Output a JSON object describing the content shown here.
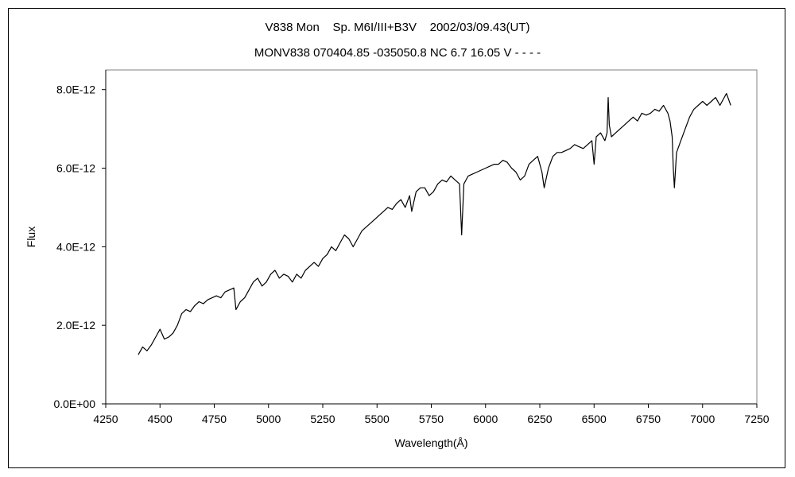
{
  "chart_data": {
    "type": "line",
    "title": "V838 Mon    Sp. M6I/III+B3V    2002/03/09.43(UT)",
    "subtitle": "MONV838 070404.85 -035050.8 NC 6.7 16.05 V - - - -",
    "xlabel": "Wavelength(Å)",
    "ylabel": "Flux",
    "xlim": [
      4250,
      7250
    ],
    "ylim": [
      0,
      8.5e-12
    ],
    "x_ticks": [
      4250,
      4500,
      4750,
      5000,
      5250,
      5500,
      5750,
      6000,
      6250,
      6500,
      6750,
      7000,
      7250
    ],
    "x_tick_labels": [
      "4250",
      "4500",
      "4750",
      "5000",
      "5250",
      "5500",
      "5750",
      "6000",
      "6250",
      "6500",
      "6750",
      "7000",
      "7250"
    ],
    "y_ticks": [
      0,
      2e-12,
      4e-12,
      6e-12,
      8e-12
    ],
    "y_tick_labels": [
      "0.0E+00",
      "2.0E-12",
      "4.0E-12",
      "6.0E-12",
      "8.0E-12"
    ],
    "grid": false,
    "legend": "none",
    "line_color": "#000000",
    "series": [
      {
        "x": [
          4400,
          4420,
          4440,
          4460,
          4480,
          4500,
          4520,
          4540,
          4560,
          4580,
          4600,
          4620,
          4640,
          4660,
          4680,
          4700,
          4720,
          4740,
          4760,
          4780,
          4800,
          4820,
          4840,
          4850,
          4870,
          4890,
          4910,
          4930,
          4950,
          4970,
          4990,
          5010,
          5030,
          5050,
          5070,
          5090,
          5110,
          5130,
          5150,
          5170,
          5190,
          5210,
          5230,
          5250,
          5270,
          5290,
          5310,
          5330,
          5350,
          5370,
          5390,
          5410,
          5430,
          5450,
          5470,
          5490,
          5510,
          5530,
          5550,
          5570,
          5590,
          5610,
          5630,
          5650,
          5660,
          5680,
          5700,
          5720,
          5740,
          5760,
          5780,
          5800,
          5820,
          5840,
          5860,
          5880,
          5890,
          5900,
          5920,
          5940,
          5960,
          5980,
          6000,
          6020,
          6040,
          6060,
          6080,
          6100,
          6120,
          6140,
          6160,
          6180,
          6200,
          6220,
          6240,
          6260,
          6270,
          6290,
          6310,
          6330,
          6350,
          6370,
          6390,
          6410,
          6430,
          6450,
          6470,
          6490,
          6500,
          6510,
          6530,
          6550,
          6560,
          6565,
          6570,
          6580,
          6600,
          6620,
          6640,
          6660,
          6680,
          6700,
          6720,
          6740,
          6760,
          6780,
          6800,
          6820,
          6840,
          6850,
          6860,
          6865,
          6870,
          6880,
          6900,
          6920,
          6940,
          6960,
          6980,
          7000,
          7020,
          7040,
          7060,
          7080,
          7100,
          7110,
          7120,
          7130
        ],
        "y": [
          1.25e-12,
          1.45e-12,
          1.35e-12,
          1.5e-12,
          1.7e-12,
          1.9e-12,
          1.65e-12,
          1.7e-12,
          1.8e-12,
          2e-12,
          2.3e-12,
          2.4e-12,
          2.35e-12,
          2.5e-12,
          2.6e-12,
          2.55e-12,
          2.65e-12,
          2.7e-12,
          2.75e-12,
          2.7e-12,
          2.85e-12,
          2.9e-12,
          2.95e-12,
          2.4e-12,
          2.6e-12,
          2.7e-12,
          2.9e-12,
          3.1e-12,
          3.2e-12,
          3e-12,
          3.1e-12,
          3.3e-12,
          3.4e-12,
          3.2e-12,
          3.3e-12,
          3.25e-12,
          3.1e-12,
          3.3e-12,
          3.2e-12,
          3.4e-12,
          3.5e-12,
          3.6e-12,
          3.5e-12,
          3.7e-12,
          3.8e-12,
          4e-12,
          3.9e-12,
          4.1e-12,
          4.3e-12,
          4.2e-12,
          4e-12,
          4.2e-12,
          4.4e-12,
          4.5e-12,
          4.6e-12,
          4.7e-12,
          4.8e-12,
          4.9e-12,
          5e-12,
          4.95e-12,
          5.1e-12,
          5.2e-12,
          5e-12,
          5.3e-12,
          4.9e-12,
          5.4e-12,
          5.5e-12,
          5.5e-12,
          5.3e-12,
          5.4e-12,
          5.6e-12,
          5.7e-12,
          5.65e-12,
          5.8e-12,
          5.7e-12,
          5.6e-12,
          4.3e-12,
          5.6e-12,
          5.8e-12,
          5.85e-12,
          5.9e-12,
          5.95e-12,
          6e-12,
          6.05e-12,
          6.1e-12,
          6.1e-12,
          6.2e-12,
          6.15e-12,
          6e-12,
          5.9e-12,
          5.7e-12,
          5.8e-12,
          6.1e-12,
          6.2e-12,
          6.3e-12,
          5.9e-12,
          5.5e-12,
          6e-12,
          6.3e-12,
          6.4e-12,
          6.4e-12,
          6.45e-12,
          6.5e-12,
          6.6e-12,
          6.55e-12,
          6.5e-12,
          6.6e-12,
          6.7e-12,
          6.1e-12,
          6.8e-12,
          6.9e-12,
          6.7e-12,
          6.9e-12,
          7.8e-12,
          7.1e-12,
          6.8e-12,
          6.9e-12,
          7e-12,
          7.1e-12,
          7.2e-12,
          7.3e-12,
          7.2e-12,
          7.4e-12,
          7.35e-12,
          7.4e-12,
          7.5e-12,
          7.45e-12,
          7.6e-12,
          7.4e-12,
          7.2e-12,
          6.8e-12,
          6e-12,
          5.5e-12,
          6.4e-12,
          6.7e-12,
          7e-12,
          7.3e-12,
          7.5e-12,
          7.6e-12,
          7.7e-12,
          7.6e-12,
          7.7e-12,
          7.8e-12,
          7.6e-12,
          7.8e-12,
          7.9e-12,
          7.75e-12,
          7.6e-12
        ]
      }
    ]
  }
}
